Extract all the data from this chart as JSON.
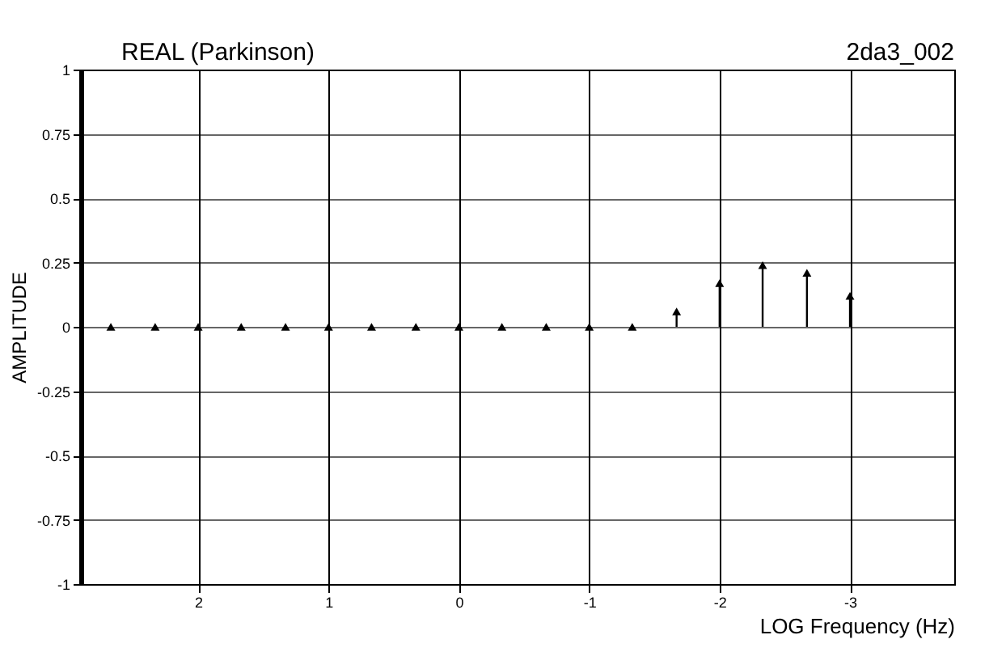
{
  "chart_data": {
    "type": "lollipop",
    "title": "REAL (Parkinson)",
    "annotations": [
      "2da3_002"
    ],
    "xlabel": "LOG Frequency (Hz)",
    "ylabel": "AMPLITUDE",
    "x": [
      2.67,
      2.33,
      2,
      1.67,
      1.33,
      1,
      0.67,
      0.33,
      0,
      -0.33,
      -0.67,
      -1,
      -1.33,
      -1.67,
      -2,
      -2.33,
      -2.67,
      -3
    ],
    "values": [
      0,
      0,
      0,
      0,
      0,
      0,
      0,
      0,
      0,
      0,
      0,
      0,
      0,
      0.06,
      0.17,
      0.24,
      0.21,
      0.12
    ],
    "color": "#000000",
    "marker": "triangle",
    "xlim": [
      2.9,
      -3.8
    ],
    "xticks": [
      2,
      1,
      0,
      -1,
      -2,
      -3
    ],
    "ylim": [
      -1,
      1
    ],
    "yticks": [
      -1,
      -0.75,
      -0.5,
      -0.25,
      0,
      0.25,
      0.5,
      0.75,
      1
    ],
    "grid": true
  }
}
